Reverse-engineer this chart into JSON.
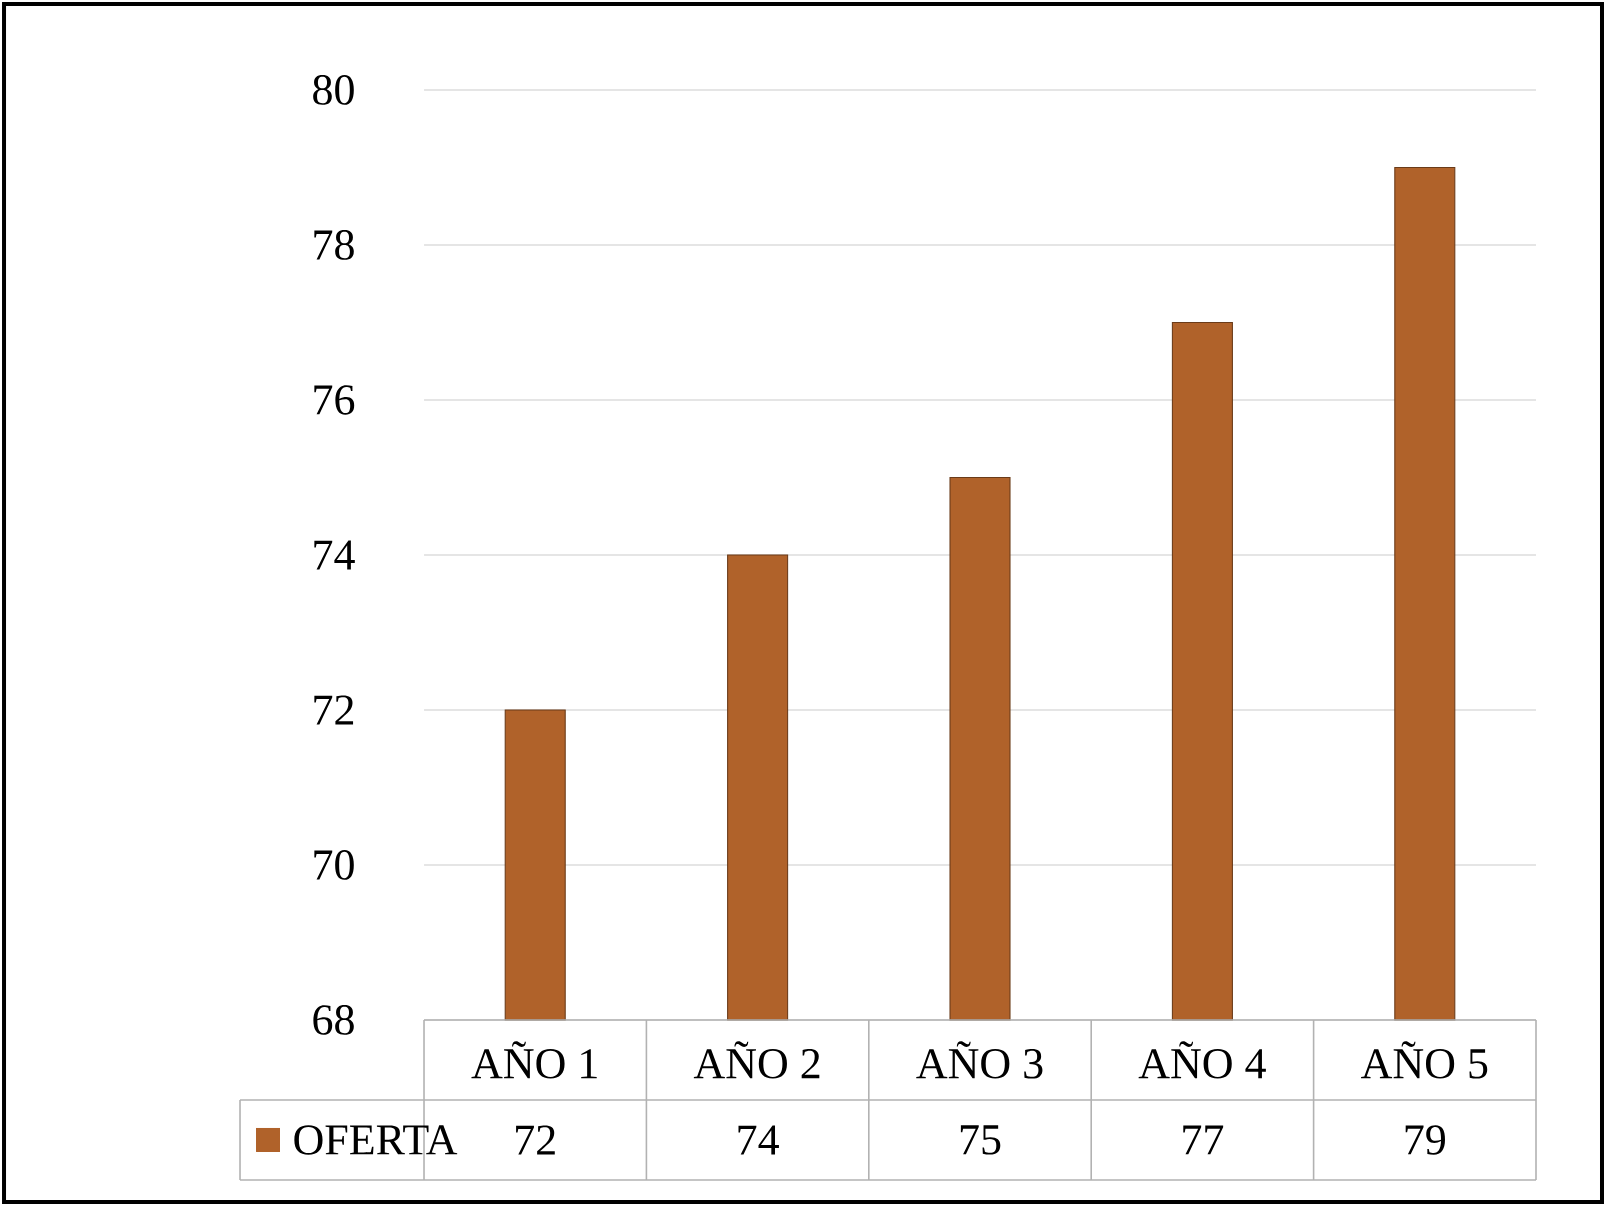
{
  "chart_data": {
    "type": "bar",
    "categories": [
      "AÑO 1",
      "AÑO 2",
      "AÑO 3",
      "AÑO 4",
      "AÑO 5"
    ],
    "series": [
      {
        "name": "OFERTA",
        "color": "#b0622a",
        "values": [
          72,
          74,
          75,
          77,
          79
        ]
      }
    ],
    "ylim": [
      68,
      80
    ],
    "yticks": [
      68,
      70,
      72,
      74,
      76,
      78,
      80
    ],
    "grid": "y",
    "legend": "bottom",
    "data_labels": true
  }
}
